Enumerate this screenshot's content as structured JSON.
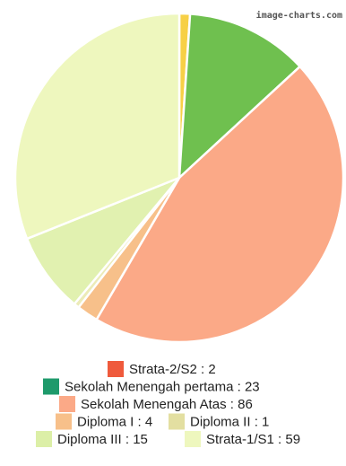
{
  "watermark": "image-charts.com",
  "chart_data": {
    "type": "pie",
    "title": "",
    "start_angle_deg": 0,
    "direction": "clockwise",
    "slices": [
      {
        "label": "Strata-2/S2 : 2",
        "value": 2,
        "color": "#f7d046"
      },
      {
        "label": "Sekolah Menengah pertama : 23",
        "value": 23,
        "color": "#6fc04f"
      },
      {
        "label": "Sekolah Menengah Atas : 86",
        "value": 86,
        "color": "#fba987"
      },
      {
        "label": "Diploma I : 4",
        "value": 4,
        "color": "#f7c08a"
      },
      {
        "label": "Diploma II : 1",
        "value": 1,
        "color": "#ecebb8"
      },
      {
        "label": "Diploma III : 15",
        "value": 15,
        "color": "#e1f1b0"
      },
      {
        "label": "Strata-1/S1 : 59",
        "value": 59,
        "color": "#eef7be"
      }
    ],
    "legend": {
      "placement": "bottom",
      "rows": [
        [
          {
            "label": "Strata-2/S2 : 2",
            "color": "#ef5a3c"
          }
        ],
        [
          {
            "label": "Sekolah Menengah pertama : 23",
            "color": "#1e9a6b"
          }
        ],
        [
          {
            "label": "Sekolah Menengah Atas : 86",
            "color": "#fba987"
          }
        ],
        [
          {
            "label": "Diploma I : 4",
            "color": "#f7c08a"
          },
          {
            "label": "Diploma II : 1",
            "color": "#e3dfa1"
          }
        ],
        [
          {
            "label": "Diploma III : 15",
            "color": "#dcefa7"
          },
          {
            "label": "Strata-1/S1 : 59",
            "color": "#eef7be"
          }
        ]
      ]
    }
  }
}
